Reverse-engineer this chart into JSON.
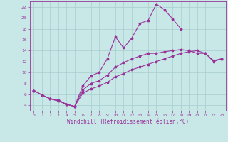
{
  "title": "",
  "xlabel": "Windchill (Refroidissement éolien,°C)",
  "ylabel": "",
  "xlim": [
    -0.5,
    23.5
  ],
  "ylim": [
    3.0,
    23.0
  ],
  "xticks": [
    0,
    1,
    2,
    3,
    4,
    5,
    6,
    7,
    8,
    9,
    10,
    11,
    12,
    13,
    14,
    15,
    16,
    17,
    18,
    19,
    20,
    21,
    22,
    23
  ],
  "yticks": [
    4,
    6,
    8,
    10,
    12,
    14,
    16,
    18,
    20,
    22
  ],
  "bg_color": "#c8e8e8",
  "grid_color": "#a8cccc",
  "line_color": "#993399",
  "marker": "*",
  "markersize": 2.5,
  "linewidth": 0.8,
  "lines": [
    {
      "x": [
        0,
        1,
        2,
        3,
        4,
        5,
        6,
        7,
        8,
        9,
        10,
        11,
        12,
        13,
        14,
        15,
        16,
        17,
        18
      ],
      "y": [
        6.7,
        5.9,
        5.2,
        4.8,
        4.2,
        3.8,
        7.5,
        9.4,
        10.0,
        12.5,
        16.5,
        14.5,
        16.3,
        19.0,
        19.5,
        22.5,
        21.5,
        19.8,
        18.0
      ]
    },
    {
      "x": [
        0,
        1,
        2,
        3,
        4,
        5,
        6,
        7,
        8,
        9,
        10,
        11,
        12,
        13,
        14,
        15,
        16,
        17,
        18,
        19,
        20,
        21,
        22,
        23
      ],
      "y": [
        6.7,
        5.9,
        5.2,
        4.8,
        4.2,
        3.8,
        6.8,
        8.0,
        8.5,
        9.5,
        11.0,
        11.8,
        12.5,
        13.0,
        13.5,
        13.5,
        13.8,
        14.0,
        14.2,
        14.0,
        13.5,
        13.5,
        12.0,
        12.5
      ]
    },
    {
      "x": [
        0,
        1,
        2,
        3,
        4,
        5,
        6,
        7,
        8,
        9,
        10,
        11,
        12,
        13,
        14,
        15,
        16,
        17,
        18,
        19,
        20,
        21,
        22,
        23
      ],
      "y": [
        6.7,
        5.9,
        5.2,
        5.0,
        4.2,
        3.8,
        6.2,
        7.0,
        7.5,
        8.2,
        9.2,
        9.8,
        10.5,
        11.0,
        11.5,
        12.0,
        12.5,
        13.0,
        13.5,
        13.8,
        14.0,
        13.5,
        12.2,
        12.5
      ]
    }
  ]
}
